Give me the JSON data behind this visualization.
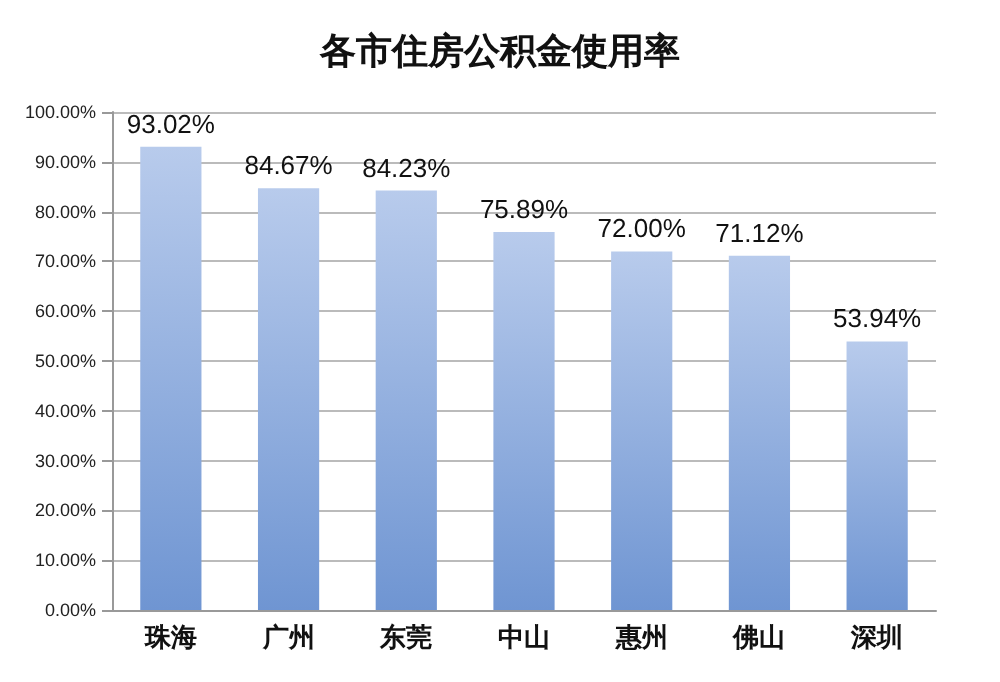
{
  "chart_data": {
    "type": "bar",
    "title": "各市住房公积金使用率",
    "categories": [
      "珠海",
      "广州",
      "东莞",
      "中山",
      "惠州",
      "佛山",
      "深圳"
    ],
    "values": [
      93.02,
      84.67,
      84.23,
      75.89,
      72.0,
      71.12,
      53.94
    ],
    "value_labels": [
      "93.02%",
      "84.67%",
      "84.23%",
      "75.89%",
      "72.00%",
      "71.12%",
      "53.94%"
    ],
    "color": "#6f95d2",
    "ylim": [
      0,
      100
    ],
    "yticks": [
      {
        "value": 0,
        "label": "0.00%"
      },
      {
        "value": 10,
        "label": "10.00%"
      },
      {
        "value": 20,
        "label": "20.00%"
      },
      {
        "value": 30,
        "label": "30.00%"
      },
      {
        "value": 40,
        "label": "40.00%"
      },
      {
        "value": 50,
        "label": "50.00%"
      },
      {
        "value": 60,
        "label": "60.00%"
      },
      {
        "value": 70,
        "label": "70.00%"
      },
      {
        "value": 80,
        "label": "80.00%"
      },
      {
        "value": 90,
        "label": "90.00%"
      },
      {
        "value": 100,
        "label": "100.00%"
      }
    ],
    "grid": "y"
  }
}
